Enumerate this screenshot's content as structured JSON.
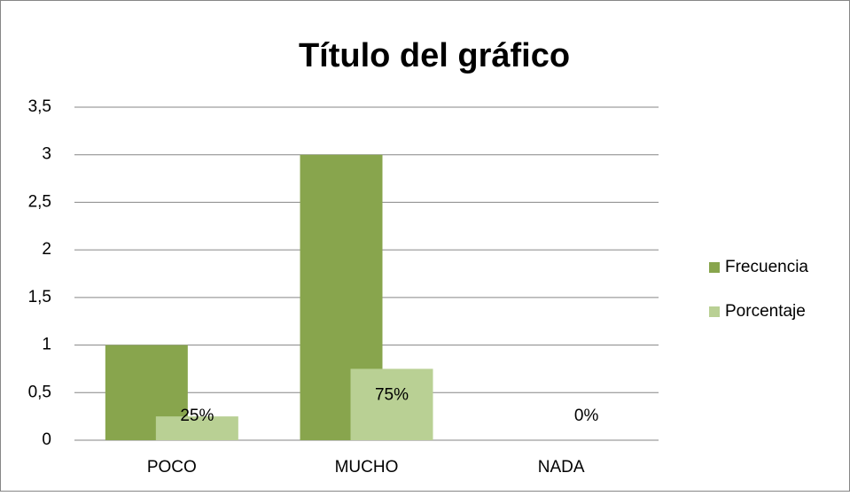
{
  "chart_data": {
    "type": "bar",
    "title": "Título del gráfico",
    "categories": [
      "POCO",
      "MUCHO",
      "NADA"
    ],
    "series": [
      {
        "name": "Frecuencia",
        "color": "#88a54d",
        "values": [
          1,
          3,
          0
        ]
      },
      {
        "name": "Porcentaje",
        "color": "#b9d094",
        "values": [
          0.25,
          0.75,
          0
        ],
        "value_labels": [
          "25%",
          "75%",
          "0%"
        ]
      }
    ],
    "ylim": [
      0,
      3.5
    ],
    "yticks": [
      0,
      {
        "value": 0.5,
        "label": "0,5"
      },
      1,
      {
        "value": 1.5,
        "label": "1,5"
      },
      2,
      {
        "value": 2.5,
        "label": "2,5"
      },
      3,
      {
        "value": 3.5,
        "label": "3,5"
      }
    ],
    "grid": true,
    "legend": "right"
  }
}
